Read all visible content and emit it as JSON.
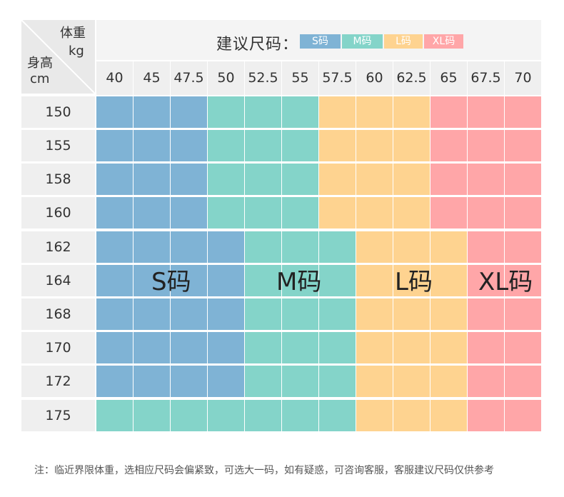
{
  "corner": {
    "weight_label": "体重",
    "weight_unit": "kg",
    "height_label": "身高",
    "height_unit": "cm"
  },
  "legend": {
    "title": "建议尺码：",
    "items": [
      {
        "label": "S码",
        "color": "#7fb3d5"
      },
      {
        "label": "M码",
        "color": "#84d4c9"
      },
      {
        "label": "L码",
        "color": "#fed390"
      },
      {
        "label": "XL码",
        "color": "#ffa6a8"
      }
    ]
  },
  "weights": [
    "40",
    "45",
    "47.5",
    "50",
    "52.5",
    "55",
    "57.5",
    "60",
    "62.5",
    "65",
    "67.5",
    "70"
  ],
  "heights": [
    "150",
    "155",
    "158",
    "160",
    "162",
    "164",
    "168",
    "170",
    "172",
    "175"
  ],
  "size_colors": {
    "S": "#7fb3d5",
    "M": "#84d4c9",
    "L": "#fed390",
    "XL": "#ffa6a8"
  },
  "zone_labels": {
    "S": "S码",
    "M": "M码",
    "L": "L码",
    "XL": "XL码"
  },
  "grid": [
    [
      "S",
      "S",
      "S",
      "M",
      "M",
      "M",
      "L",
      "L",
      "L",
      "XL",
      "XL",
      "XL"
    ],
    [
      "S",
      "S",
      "S",
      "M",
      "M",
      "M",
      "L",
      "L",
      "L",
      "XL",
      "XL",
      "XL"
    ],
    [
      "S",
      "S",
      "S",
      "M",
      "M",
      "M",
      "L",
      "L",
      "L",
      "XL",
      "XL",
      "XL"
    ],
    [
      "S",
      "S",
      "S",
      "M",
      "M",
      "M",
      "L",
      "L",
      "L",
      "XL",
      "XL",
      "XL"
    ],
    [
      "S",
      "S",
      "S",
      "S",
      "M",
      "M",
      "M",
      "L",
      "L",
      "L",
      "XL",
      "XL"
    ],
    [
      "S",
      "S",
      "S",
      "S",
      "M",
      "M",
      "M",
      "L",
      "L",
      "L",
      "XL",
      "XL"
    ],
    [
      "S",
      "S",
      "S",
      "S",
      "M",
      "M",
      "M",
      "L",
      "L",
      "L",
      "XL",
      "XL"
    ],
    [
      "S",
      "S",
      "S",
      "S",
      "M",
      "M",
      "M",
      "L",
      "L",
      "L",
      "XL",
      "XL"
    ],
    [
      "S",
      "S",
      "S",
      "S",
      "M",
      "M",
      "M",
      "L",
      "L",
      "L",
      "XL",
      "XL"
    ],
    [
      "M",
      "M",
      "M",
      "M",
      "M",
      "M",
      "M",
      "L",
      "L",
      "L",
      "XL",
      "XL"
    ]
  ],
  "note": "注：临近界限体重，选相应尺码会偏紧致，可选大一码，如有疑惑，可咨询客服，客服建议尺码仅供参考"
}
